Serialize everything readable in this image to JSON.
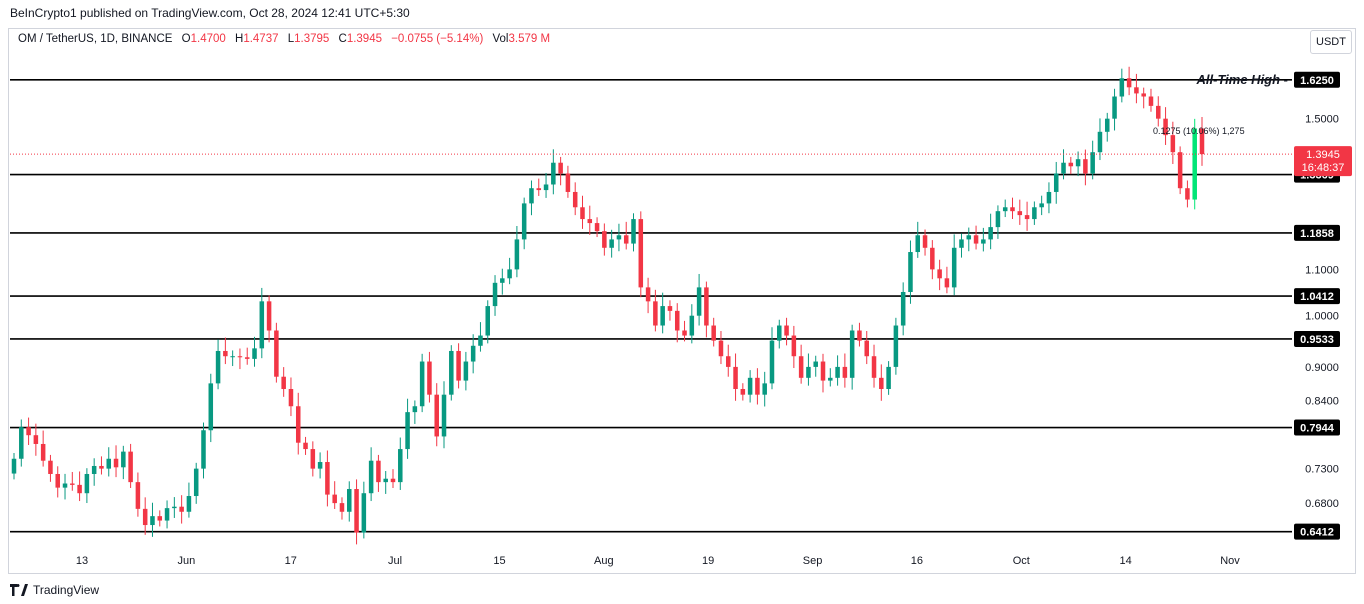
{
  "header": {
    "text": "BeInCrypto1 published on TradingView.com, Oct 28, 2024 12:41 UTC+5:30"
  },
  "legend": {
    "symbol": "OM / TetherUS, 1D, BINANCE",
    "o_label": "O",
    "o_value": "1.4700",
    "h_label": "H",
    "h_value": "1.4737",
    "l_label": "L",
    "l_value": "1.3795",
    "c_label": "C",
    "c_value": "1.3945",
    "change": "−0.0755 (−5.14%)",
    "vol_label": "Vol",
    "vol_value": "3.579 M"
  },
  "unit_button": "USDT",
  "footer": {
    "brand": "TradingView"
  },
  "colors": {
    "up": "#089981",
    "down": "#f23645",
    "level": "#000000",
    "last_price": "#f23645",
    "highlight": "#00e676"
  },
  "chart_data": {
    "type": "candlestick",
    "ylim": [
      0.62,
      1.71
    ],
    "y_scale": "log",
    "y_ticks": [
      "1.5000",
      "1.1000",
      "1.0000",
      "0.9000",
      "0.8400",
      "0.7300",
      "0.6800"
    ],
    "x_ticks": [
      "13",
      "Jun",
      "17",
      "Jul",
      "15",
      "Aug",
      "19",
      "Sep",
      "16",
      "Oct",
      "14",
      "Nov"
    ],
    "levels": [
      {
        "value": "1.6250",
        "annotation": "All-Time High"
      },
      {
        "value": "1.3369"
      },
      {
        "value": "1.1858"
      },
      {
        "value": "1.0412"
      },
      {
        "value": "0.9533"
      },
      {
        "value": "0.7944"
      },
      {
        "value": "0.6412"
      }
    ],
    "last_price": {
      "value": "1.3945",
      "countdown": "16:48:37"
    },
    "measure_label": "0.1275 (10.06%) 1,275",
    "close_series": [
      0.745,
      0.795,
      0.782,
      0.768,
      0.742,
      0.722,
      0.702,
      0.708,
      0.706,
      0.694,
      0.722,
      0.734,
      0.73,
      0.745,
      0.732,
      0.756,
      0.71,
      0.672,
      0.65,
      0.662,
      0.656,
      0.673,
      0.675,
      0.668,
      0.69,
      0.73,
      0.79,
      0.87,
      0.93,
      0.92,
      0.92,
      0.918,
      0.915,
      0.935,
      1.03,
      0.97,
      0.882,
      0.86,
      0.83,
      0.77,
      0.76,
      0.73,
      0.74,
      0.692,
      0.68,
      0.668,
      0.7,
      0.64,
      0.694,
      0.742,
      0.71,
      0.715,
      0.71,
      0.76,
      0.82,
      0.83,
      0.91,
      0.85,
      0.78,
      0.85,
      0.93,
      0.875,
      0.91,
      0.94,
      0.96,
      1.02,
      1.07,
      1.08,
      1.1,
      1.17,
      1.26,
      1.3,
      1.295,
      1.31,
      1.37,
      1.34,
      1.29,
      1.25,
      1.22,
      1.21,
      1.19,
      1.15,
      1.17,
      1.18,
      1.16,
      1.22,
      1.06,
      1.03,
      0.98,
      1.02,
      1.01,
      0.97,
      0.96,
      1.0,
      1.06,
      0.98,
      0.95,
      0.92,
      0.9,
      0.86,
      0.85,
      0.88,
      0.85,
      0.87,
      0.95,
      0.98,
      0.96,
      0.92,
      0.88,
      0.9,
      0.91,
      0.875,
      0.88,
      0.9,
      0.88,
      0.97,
      0.95,
      0.92,
      0.88,
      0.86,
      0.9,
      0.98,
      1.05,
      1.14,
      1.18,
      1.15,
      1.1,
      1.08,
      1.06,
      1.15,
      1.17,
      1.18,
      1.16,
      1.17,
      1.2,
      1.24,
      1.25,
      1.24,
      1.23,
      1.22,
      1.25,
      1.26,
      1.29,
      1.34,
      1.37,
      1.36,
      1.38,
      1.34,
      1.4,
      1.46,
      1.5,
      1.57,
      1.63,
      1.6,
      1.58,
      1.57,
      1.54,
      1.5,
      1.45,
      1.4,
      1.3,
      1.27,
      1.47,
      1.3945
    ]
  }
}
